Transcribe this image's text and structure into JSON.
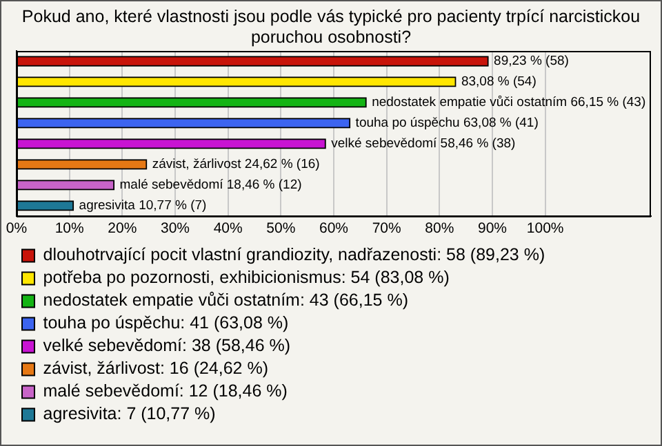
{
  "chart_data": {
    "type": "bar",
    "orientation": "horizontal",
    "title": "Pokud ano, které vlastnosti jsou podle vás typické pro pacienty trpící narcistickou poruchou osobnosti?",
    "categories": [
      null,
      null,
      null,
      null,
      null,
      null,
      null,
      null
    ],
    "series": [
      {
        "name": "dlouhotrvající pocit vlastní grandiozity, nadřazenosti: 58 (89,23 %)",
        "color": "#c8140a",
        "values": [
          89.23,
          null,
          null,
          null,
          null,
          null,
          null,
          null
        ],
        "value_labels": [
          "89,23 % (58)",
          null,
          null,
          null,
          null,
          null,
          null,
          null
        ]
      },
      {
        "name": "potřeba po pozornosti, exhibicionismus: 54 (83,08 %)",
        "color": "#ffe600",
        "values": [
          null,
          83.08,
          null,
          null,
          null,
          null,
          null,
          null
        ],
        "value_labels": [
          null,
          "83,08 % (54)",
          null,
          null,
          null,
          null,
          null,
          null
        ]
      },
      {
        "name": "nedostatek empatie vůči ostatním: 43 (66,15 %)",
        "color": "#14b414",
        "values": [
          null,
          null,
          66.15,
          null,
          null,
          null,
          null,
          null
        ],
        "value_labels": [
          null,
          null,
          "nedostatek empatie vůči ostatním 66,15 % (43)",
          null,
          null,
          null,
          null,
          null
        ]
      },
      {
        "name": "touha po úspěchu: 41 (63,08 %)",
        "color": "#3c64f0",
        "values": [
          null,
          null,
          null,
          63.08,
          null,
          null,
          null,
          null
        ],
        "value_labels": [
          null,
          null,
          null,
          "touha po úspěchu 63,08 % (41)",
          null,
          null,
          null,
          null
        ]
      },
      {
        "name": "velké sebevědomí: 38 (58,46 %)",
        "color": "#c814d2",
        "values": [
          null,
          null,
          null,
          null,
          58.46,
          null,
          null,
          null
        ],
        "value_labels": [
          null,
          null,
          null,
          null,
          "velké sebevědomí 58,46 % (38)",
          null,
          null,
          null
        ]
      },
      {
        "name": "závist, žárlivost: 16 (24,62 %)",
        "color": "#e67814",
        "values": [
          null,
          null,
          null,
          null,
          null,
          24.62,
          null,
          null
        ],
        "value_labels": [
          null,
          null,
          null,
          null,
          null,
          "závist, žárlivost 24,62 % (16)",
          null,
          null
        ]
      },
      {
        "name": "malé sebevědomí: 12 (18,46 %)",
        "color": "#c864c8",
        "values": [
          null,
          null,
          null,
          null,
          null,
          null,
          18.46,
          null
        ],
        "value_labels": [
          null,
          null,
          null,
          null,
          null,
          null,
          "malé sebevědomí 18,46 % (12)",
          null
        ]
      },
      {
        "name": "agresivita: 7 (10,77 %)",
        "color": "#1e7896",
        "values": [
          null,
          null,
          null,
          null,
          null,
          null,
          null,
          10.77
        ],
        "value_labels": [
          null,
          null,
          null,
          null,
          null,
          null,
          null,
          "agresivita 10,77 % (7)"
        ]
      }
    ],
    "xlim": [
      0,
      120
    ],
    "xticks": [
      {
        "value": 0,
        "label": "0%"
      },
      {
        "value": 10,
        "label": "10%"
      },
      {
        "value": 20,
        "label": "20%"
      },
      {
        "value": 30,
        "label": "30%"
      },
      {
        "value": 40,
        "label": "40%"
      },
      {
        "value": 50,
        "label": "50%"
      },
      {
        "value": 60,
        "label": "60%"
      },
      {
        "value": 70,
        "label": "70%"
      },
      {
        "value": 80,
        "label": "80%"
      },
      {
        "value": 90,
        "label": "90%"
      },
      {
        "value": 100,
        "label": "100%"
      }
    ],
    "grid": "x",
    "tick_labels": "x",
    "legend": "bottom"
  }
}
